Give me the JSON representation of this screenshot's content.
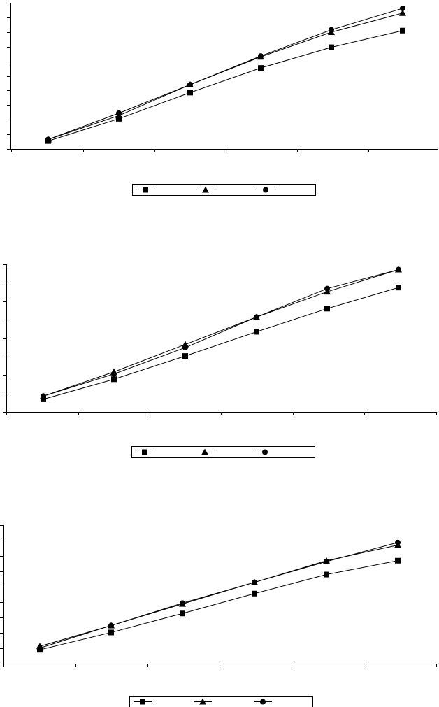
{
  "chart_data": [
    {
      "type": "line",
      "grid": false,
      "legend_position": "bottom",
      "ylim": [
        0,
        9.2
      ],
      "x": [
        1,
        2,
        3,
        4,
        5,
        6
      ],
      "series": [
        {
          "marker": "square",
          "values": [
            0.5,
            1.9,
            3.55,
            5.1,
            6.4,
            7.45
          ]
        },
        {
          "marker": "triangle",
          "values": [
            0.6,
            2.1,
            4.05,
            5.8,
            7.35,
            8.55
          ]
        },
        {
          "marker": "circle",
          "values": [
            0.6,
            2.25,
            4.05,
            5.85,
            7.5,
            8.85
          ]
        }
      ]
    },
    {
      "type": "line",
      "grid": false,
      "legend_position": "bottom",
      "ylim": [
        0,
        7
      ],
      "x": [
        1,
        2,
        3,
        4,
        5,
        6
      ],
      "series": [
        {
          "marker": "square",
          "values": [
            0.6,
            1.55,
            2.65,
            3.8,
            4.9,
            5.9
          ]
        },
        {
          "marker": "triangle",
          "values": [
            0.75,
            1.9,
            3.2,
            4.5,
            5.7,
            6.75
          ]
        },
        {
          "marker": "circle",
          "values": [
            0.75,
            1.8,
            3.05,
            4.5,
            5.85,
            6.75
          ]
        }
      ]
    },
    {
      "type": "line",
      "grid": false,
      "legend_position": "bottom",
      "ylim": [
        0,
        8
      ],
      "x": [
        1,
        2,
        3,
        4,
        5,
        6
      ],
      "series": [
        {
          "marker": "square",
          "values": [
            0.8,
            1.8,
            2.9,
            4.05,
            5.15,
            5.95
          ]
        },
        {
          "marker": "triangle",
          "values": [
            1.0,
            2.2,
            3.45,
            4.7,
            5.95,
            6.85
          ]
        },
        {
          "marker": "circle",
          "values": [
            0.9,
            2.2,
            3.5,
            4.7,
            5.9,
            7.0
          ]
        }
      ]
    }
  ]
}
